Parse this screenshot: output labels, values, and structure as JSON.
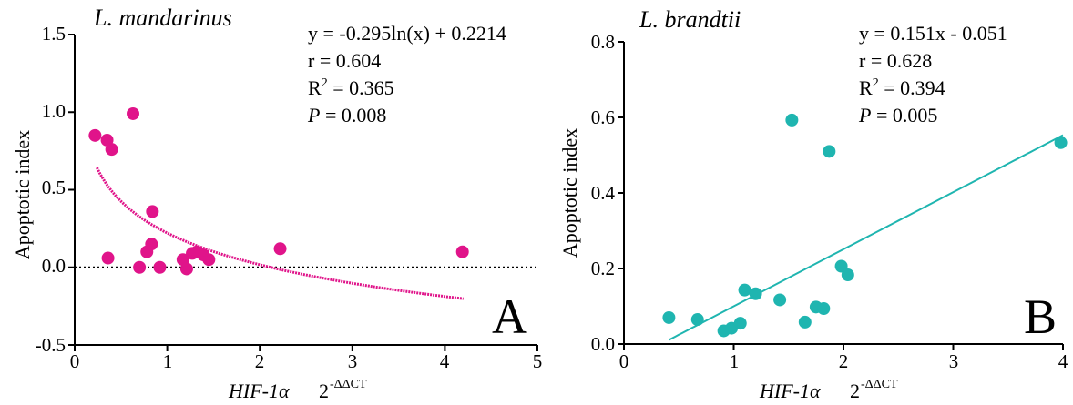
{
  "chart_data": [
    {
      "type": "scatter",
      "panel_label": "A",
      "species": "L. mandarinus",
      "ylabel": "Apoptotic index",
      "xlabel": {
        "gene": "HIF-1α",
        "formula_base": "2",
        "formula_exp": "-ΔΔCT"
      },
      "xlim": [
        0,
        5
      ],
      "ylim": [
        -0.5,
        1.5
      ],
      "x_ticks": [
        "0",
        "1",
        "2",
        "3",
        "4",
        "5"
      ],
      "y_ticks": [
        "-0.5",
        "0.0",
        "0.5",
        "1.0",
        "1.5"
      ],
      "point_color": "#e0148a",
      "fit_color": "#e0148a",
      "zero_line": true,
      "stats": {
        "equation": "y = -0.295ln(x) + 0.2214",
        "r_prefix": "r = ",
        "r": "0.604",
        "r2_prefix": "R",
        "r2_sup": "2",
        "r2_mid": " = ",
        "r2": "0.365",
        "p_label": "P",
        "p_mid": " = ",
        "p": "0.008"
      },
      "fit": {
        "model": "log",
        "a": -0.295,
        "b": 0.2214,
        "x_range": [
          0.24,
          4.2
        ]
      },
      "points": [
        {
          "x": 0.22,
          "y": 0.85
        },
        {
          "x": 0.35,
          "y": 0.82
        },
        {
          "x": 0.4,
          "y": 0.76
        },
        {
          "x": 0.63,
          "y": 0.99
        },
        {
          "x": 0.36,
          "y": 0.06
        },
        {
          "x": 0.7,
          "y": 0.0
        },
        {
          "x": 0.78,
          "y": 0.1
        },
        {
          "x": 0.83,
          "y": 0.15
        },
        {
          "x": 0.84,
          "y": 0.36
        },
        {
          "x": 0.92,
          "y": 0.0
        },
        {
          "x": 1.17,
          "y": 0.05
        },
        {
          "x": 1.21,
          "y": -0.01
        },
        {
          "x": 1.27,
          "y": 0.09
        },
        {
          "x": 1.32,
          "y": 0.1
        },
        {
          "x": 1.39,
          "y": 0.08
        },
        {
          "x": 1.45,
          "y": 0.05
        },
        {
          "x": 2.22,
          "y": 0.12
        },
        {
          "x": 4.19,
          "y": 0.1
        }
      ]
    },
    {
      "type": "scatter",
      "panel_label": "B",
      "species": "L. brandtii",
      "ylabel": "Apoptotic index",
      "xlabel": {
        "gene": "HIF-1α",
        "formula_base": "2",
        "formula_exp": "-ΔΔCT"
      },
      "xlim": [
        0,
        4
      ],
      "ylim": [
        0,
        0.8
      ],
      "x_ticks": [
        "0",
        "1",
        "2",
        "3",
        "4"
      ],
      "y_ticks": [
        "0.0",
        "0.2",
        "0.4",
        "0.6",
        "0.8"
      ],
      "point_color": "#1fb5b0",
      "fit_color": "#1fb5b0",
      "zero_line": false,
      "stats": {
        "equation": "y = 0.151x - 0.051",
        "r_prefix": "r = ",
        "r": "0.628",
        "r2_prefix": "R",
        "r2_sup": "2",
        "r2_mid": " = ",
        "r2": "0.394",
        "p_label": "P",
        "p_mid": " = ",
        "p": "0.005"
      },
      "fit": {
        "model": "linear",
        "a": 0.151,
        "b": -0.051,
        "x_range": [
          0.41,
          4.0
        ]
      },
      "points": [
        {
          "x": 0.41,
          "y": 0.07
        },
        {
          "x": 0.67,
          "y": 0.065
        },
        {
          "x": 0.91,
          "y": 0.035
        },
        {
          "x": 0.98,
          "y": 0.042
        },
        {
          "x": 1.06,
          "y": 0.055
        },
        {
          "x": 1.1,
          "y": 0.143
        },
        {
          "x": 1.2,
          "y": 0.133
        },
        {
          "x": 1.42,
          "y": 0.117
        },
        {
          "x": 1.53,
          "y": 0.593
        },
        {
          "x": 1.65,
          "y": 0.058
        },
        {
          "x": 1.75,
          "y": 0.098
        },
        {
          "x": 1.82,
          "y": 0.094
        },
        {
          "x": 1.87,
          "y": 0.51
        },
        {
          "x": 1.98,
          "y": 0.206
        },
        {
          "x": 2.04,
          "y": 0.183
        },
        {
          "x": 3.98,
          "y": 0.533
        }
      ]
    }
  ]
}
